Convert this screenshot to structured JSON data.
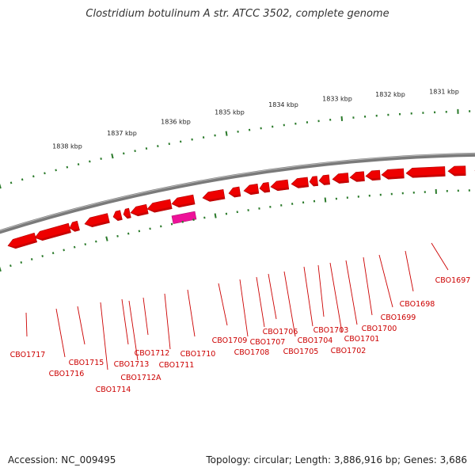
{
  "title": "Clostridium botulinum A str. ATCC 3502, complete genome",
  "footer": {
    "accession": "Accession: NC_009495",
    "summary": "Topology: circular; Length: 3,886,916 bp; Genes: 3,686"
  },
  "colors": {
    "backbone": "#7a7a7a",
    "gene": "#ee0000",
    "gene_dark": "#b00000",
    "highlight_gene": "#ee1199",
    "tick": "#2a7a2a",
    "label": "#cc0000"
  },
  "kbp_labels": [
    "1831 kbp",
    "1832 kbp",
    "1833 kbp",
    "1834 kbp",
    "1835 kbp",
    "1836 kbp",
    "1837 kbp",
    "1838 kbp"
  ],
  "gene_labels": [
    "CBO1697",
    "CBO1698",
    "CBO1699",
    "CBO1700",
    "CBO1701",
    "CBO1702",
    "CBO1703",
    "CBO1704",
    "CBO1705",
    "CBO1706",
    "CBO1707",
    "CBO1708",
    "CBO1709",
    "CBO1710",
    "CBO1711",
    "CBO1712",
    "CBO1712A",
    "CBO1713",
    "CBO1714",
    "CBO1715",
    "CBO1716",
    "CBO1717"
  ]
}
